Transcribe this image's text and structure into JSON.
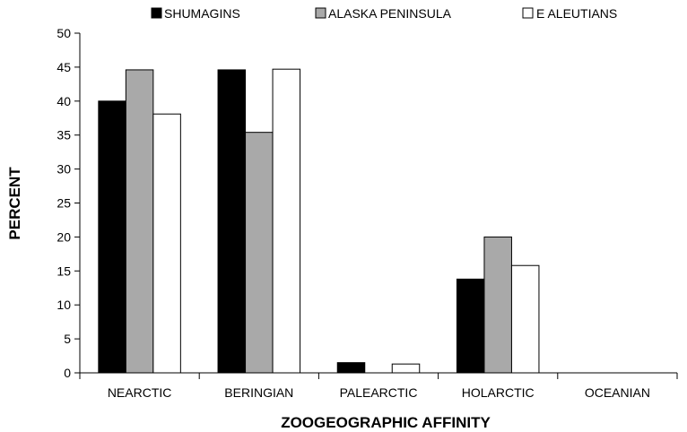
{
  "chart_data": {
    "type": "bar",
    "title": "",
    "xlabel": "ZOOGEOGRAPHIC AFFINITY",
    "ylabel": "PERCENT",
    "ylim": [
      0,
      50
    ],
    "yticks": [
      0,
      5,
      10,
      15,
      20,
      25,
      30,
      35,
      40,
      45,
      50
    ],
    "grid": false,
    "legend_position": "top",
    "categories": [
      "NEARCTIC",
      "BERINGIAN",
      "PALEARCTIC",
      "HOLARCTIC",
      "OCEANIAN"
    ],
    "series": [
      {
        "name": "SHUMAGINS",
        "color": "#000000",
        "values": [
          40.0,
          44.6,
          1.5,
          13.8,
          0
        ]
      },
      {
        "name": "ALASKA PENINSULA",
        "color": "#a9a9a9",
        "values": [
          44.6,
          35.4,
          0,
          20.0,
          0
        ]
      },
      {
        "name": "E ALEUTIANS",
        "color": "#ffffff",
        "values": [
          38.1,
          44.7,
          1.3,
          15.8,
          0
        ]
      }
    ]
  }
}
